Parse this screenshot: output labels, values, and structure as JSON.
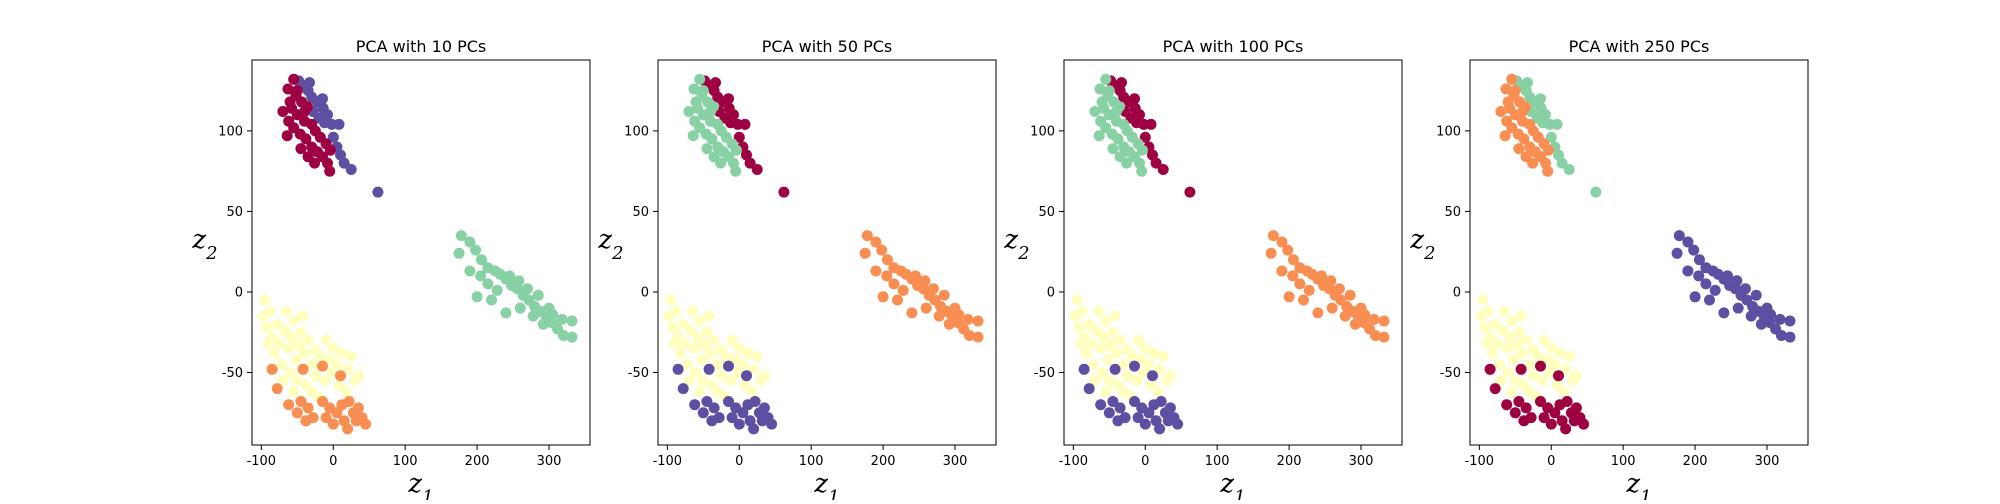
{
  "figure": {
    "background": "#ffffff"
  },
  "palette": {
    "class_0": "#9e0142",
    "class_1": "#5e4fa2",
    "class_2": "#88d1a4",
    "class_3": "#f98e52",
    "class_4": "#ffffbf"
  },
  "clusters": {
    "top": [
      [
        -63,
        126
      ],
      [
        -55,
        132
      ],
      [
        -48,
        131
      ],
      [
        -42,
        128
      ],
      [
        -35,
        125
      ],
      [
        -30,
        121
      ],
      [
        -22,
        118
      ],
      [
        -14,
        114
      ],
      [
        -8,
        110
      ],
      [
        -2,
        104
      ],
      [
        -52,
        122
      ],
      [
        -44,
        118
      ],
      [
        -36,
        115
      ],
      [
        -28,
        112
      ],
      [
        -20,
        108
      ],
      [
        -12,
        105
      ],
      [
        -58,
        114
      ],
      [
        -50,
        110
      ],
      [
        -40,
        106
      ],
      [
        -30,
        104
      ],
      [
        -25,
        100
      ],
      [
        -18,
        96
      ],
      [
        -10,
        92
      ],
      [
        -4,
        88
      ],
      [
        -70,
        112
      ],
      [
        -62,
        106
      ],
      [
        -55,
        102
      ],
      [
        -46,
        98
      ],
      [
        -38,
        95
      ],
      [
        -30,
        90
      ],
      [
        -22,
        87
      ],
      [
        -15,
        84
      ],
      [
        -8,
        80
      ],
      [
        0,
        96
      ],
      [
        5,
        90
      ],
      [
        10,
        85
      ],
      [
        15,
        80
      ],
      [
        -45,
        89
      ],
      [
        -35,
        84
      ],
      [
        -26,
        80
      ],
      [
        -64,
        97
      ],
      [
        -5,
        75
      ],
      [
        25,
        76
      ],
      [
        8,
        104
      ],
      [
        -15,
        120
      ],
      [
        -40,
        112
      ],
      [
        -50,
        125
      ],
      [
        -33,
        130
      ],
      [
        62,
        62
      ],
      [
        -60,
        118
      ]
    ],
    "diagonal": [
      [
        178,
        35
      ],
      [
        190,
        31
      ],
      [
        198,
        26
      ],
      [
        175,
        24
      ],
      [
        206,
        20
      ],
      [
        215,
        15
      ],
      [
        225,
        13
      ],
      [
        232,
        11
      ],
      [
        240,
        8
      ],
      [
        248,
        4
      ],
      [
        256,
        2
      ],
      [
        264,
        -2
      ],
      [
        272,
        -5
      ],
      [
        280,
        -9
      ],
      [
        288,
        -12
      ],
      [
        296,
        -15
      ],
      [
        304,
        -19
      ],
      [
        312,
        -23
      ],
      [
        320,
        -27
      ],
      [
        332,
        -28
      ],
      [
        332,
        -18
      ],
      [
        300,
        -10
      ],
      [
        285,
        -2
      ],
      [
        270,
        2
      ],
      [
        258,
        7
      ],
      [
        245,
        10
      ],
      [
        228,
        1
      ],
      [
        215,
        5
      ],
      [
        200,
        -3
      ],
      [
        240,
        -13
      ],
      [
        260,
        -10
      ],
      [
        278,
        -15
      ],
      [
        292,
        -20
      ],
      [
        305,
        -14
      ],
      [
        318,
        -17
      ],
      [
        190,
        13
      ],
      [
        205,
        10
      ],
      [
        220,
        -5
      ]
    ],
    "lower": [
      [
        -95,
        -5
      ],
      [
        -88,
        -12
      ],
      [
        -92,
        -22
      ],
      [
        -85,
        -28
      ],
      [
        -78,
        -20
      ],
      [
        -75,
        -32
      ],
      [
        -68,
        -24
      ],
      [
        -62,
        -35
      ],
      [
        -58,
        -28
      ],
      [
        -52,
        -42
      ],
      [
        -48,
        -33
      ],
      [
        -45,
        -25
      ],
      [
        -40,
        -38
      ],
      [
        -35,
        -30
      ],
      [
        -30,
        -45
      ],
      [
        -25,
        -36
      ],
      [
        -18,
        -40
      ],
      [
        -10,
        -30
      ],
      [
        -5,
        -42
      ],
      [
        0,
        -35
      ],
      [
        5,
        -45
      ],
      [
        12,
        -38
      ],
      [
        20,
        -48
      ],
      [
        25,
        -40
      ],
      [
        30,
        -55
      ],
      [
        35,
        -52
      ],
      [
        -82,
        -38
      ],
      [
        -72,
        -45
      ],
      [
        -60,
        -50
      ],
      [
        -90,
        -32
      ],
      [
        -65,
        -12
      ],
      [
        -55,
        -18
      ],
      [
        -42,
        -15
      ],
      [
        -98,
        -15
      ],
      [
        -70,
        -55
      ],
      [
        -50,
        -55
      ],
      [
        -38,
        -58
      ],
      [
        -25,
        -52
      ],
      [
        -12,
        -55
      ],
      [
        -2,
        -50
      ],
      [
        8,
        -58
      ],
      [
        18,
        -62
      ],
      [
        -30,
        -62
      ],
      [
        -20,
        -65
      ],
      [
        -55,
        -62
      ],
      [
        -45,
        -68
      ],
      [
        -35,
        -72
      ],
      [
        -15,
        -68
      ],
      [
        -5,
        -72
      ],
      [
        5,
        -75
      ],
      [
        12,
        -70
      ],
      [
        22,
        -68
      ],
      [
        28,
        -75
      ],
      [
        32,
        -80
      ],
      [
        15,
        -80
      ],
      [
        0,
        -82
      ],
      [
        -10,
        -78
      ],
      [
        20,
        -85
      ],
      [
        35,
        -72
      ],
      [
        40,
        -78
      ],
      [
        45,
        -82
      ],
      [
        -62,
        -70
      ],
      [
        -50,
        -75
      ],
      [
        -38,
        -80
      ],
      [
        -28,
        -78
      ],
      [
        -85,
        -48
      ],
      [
        -78,
        -60
      ],
      [
        -42,
        -48
      ],
      [
        -15,
        -46
      ],
      [
        10,
        -52
      ]
    ],
    "lower_split": 45
  },
  "chart_data": [
    {
      "type": "scatter",
      "title": "PCA with 10 PCs",
      "xlabel": "z_1",
      "ylabel": "z_2",
      "xlim": [
        -113,
        357
      ],
      "ylim": [
        -95,
        144
      ],
      "xticks": [
        -100,
        0,
        100,
        200,
        300
      ],
      "yticks": [
        -50,
        0,
        50,
        100
      ],
      "grid": false,
      "cluster_colors": {
        "top_a": "class_1",
        "top_b": "class_0",
        "diagonal": "class_2",
        "lower_a": "class_4",
        "lower_b": "class_3"
      }
    },
    {
      "type": "scatter",
      "title": "PCA with 50 PCs",
      "xlabel": "z_1",
      "ylabel": "z_2",
      "xlim": [
        -113,
        357
      ],
      "ylim": [
        -95,
        144
      ],
      "xticks": [
        -100,
        0,
        100,
        200,
        300
      ],
      "yticks": [
        -50,
        0,
        50,
        100
      ],
      "grid": false,
      "cluster_colors": {
        "top_a": "class_0",
        "top_b": "class_2",
        "diagonal": "class_3",
        "lower_a": "class_4",
        "lower_b": "class_1"
      }
    },
    {
      "type": "scatter",
      "title": "PCA with 100 PCs",
      "xlabel": "z_1",
      "ylabel": "z_2",
      "xlim": [
        -113,
        357
      ],
      "ylim": [
        -95,
        144
      ],
      "xticks": [
        -100,
        0,
        100,
        200,
        300
      ],
      "yticks": [
        -50,
        0,
        50,
        100
      ],
      "grid": false,
      "cluster_colors": {
        "top_a": "class_0",
        "top_b": "class_2",
        "diagonal": "class_3",
        "lower_a": "class_4",
        "lower_b": "class_1"
      }
    },
    {
      "type": "scatter",
      "title": "PCA with 250 PCs",
      "xlabel": "z_1",
      "ylabel": "z_2",
      "xlim": [
        -113,
        357
      ],
      "ylim": [
        -95,
        144
      ],
      "xticks": [
        -100,
        0,
        100,
        200,
        300
      ],
      "yticks": [
        -50,
        0,
        50,
        100
      ],
      "grid": false,
      "cluster_colors": {
        "top_a": "class_2",
        "top_b": "class_3",
        "diagonal": "class_1",
        "lower_a": "class_4",
        "lower_b": "class_0"
      }
    }
  ]
}
